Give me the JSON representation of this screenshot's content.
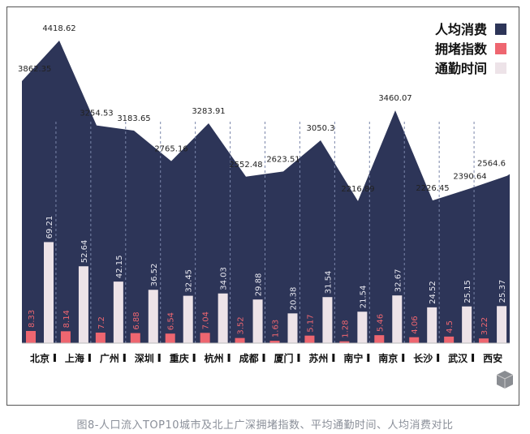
{
  "chart_data": {
    "type": "bar",
    "categories": [
      "北京",
      "上海",
      "广州",
      "深圳",
      "重庆",
      "杭州",
      "成都",
      "厦门",
      "苏州",
      "南宁",
      "南京",
      "长沙",
      "武汉",
      "西安"
    ],
    "series": [
      {
        "name": "人均消费",
        "type": "area",
        "color": "#2d3558",
        "values": [
          3862.35,
          4418.62,
          3254.53,
          3183.65,
          2765.16,
          3283.91,
          2552.48,
          2623.51,
          3050.3,
          2216.89,
          3460.07,
          2226.45,
          2390.64,
          2564.6
        ]
      },
      {
        "name": "拥堵指数",
        "type": "bar",
        "color": "#ee6670",
        "values": [
          8.33,
          8.14,
          7.2,
          6.88,
          6.54,
          7.04,
          3.52,
          1.63,
          5.17,
          1.28,
          5.46,
          4.06,
          4.5,
          3.22
        ]
      },
      {
        "name": "通勤时间",
        "type": "bar",
        "color": "#ede3e8",
        "values": [
          69.21,
          52.64,
          42.15,
          36.52,
          32.45,
          34.03,
          29.88,
          20.38,
          31.54,
          21.54,
          32.67,
          24.52,
          25.15,
          25.37
        ]
      }
    ],
    "legend_position": "top-right",
    "title": "图8-人口流入TOP10城市及北上广深拥堵指数、平均通勤时间、人均消费对比"
  }
}
